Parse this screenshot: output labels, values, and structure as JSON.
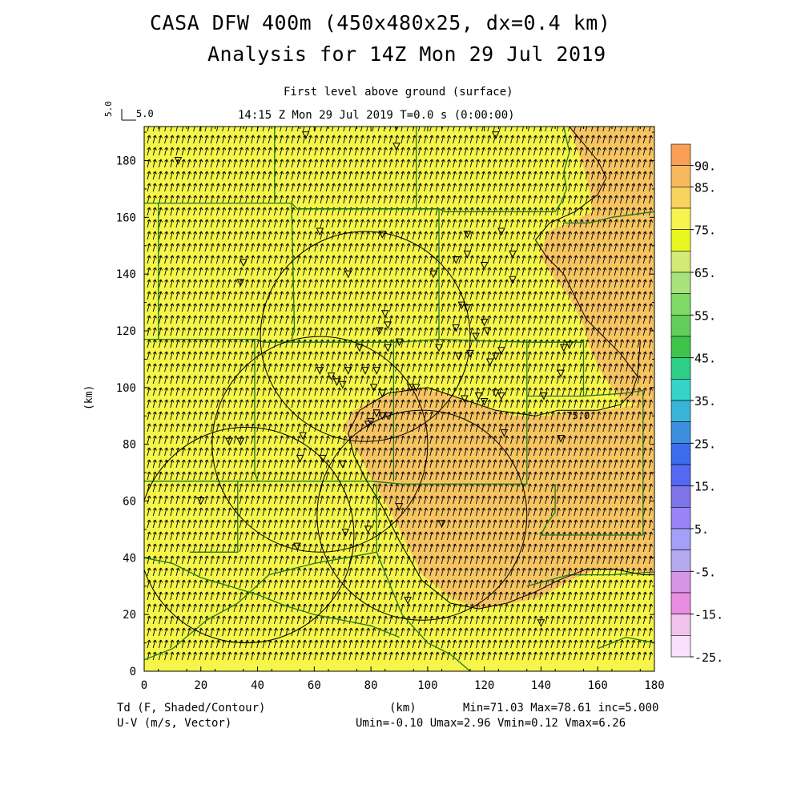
{
  "header": {
    "title": "CASA DFW 400m (450x480x25, dx=0.4 km)",
    "subtitle": "Analysis for 14Z Mon 29 Jul 2019",
    "level": "First level above ground (surface)",
    "time": "14:15 Z Mon 29 Jul 2019    T=0.0 s (0:00:00)",
    "ref_vector_label": "5.0",
    "ref_vector_value": "5.0"
  },
  "footer": {
    "variable": "Td (F, Shaded/Contour)",
    "vector": "U-V (m/s, Vector)",
    "xunit": "(km)",
    "stats": "Min=71.03 Max=78.61 inc=5.000",
    "uv_stats": "Umin=-0.10 Umax=2.96 Vmin=0.12 Vmax=6.26"
  },
  "colors": {
    "field_low": "#f5f54a",
    "field_high": "#f7c462",
    "county_lines": "#1e7a1e",
    "contour": "#000000"
  },
  "chart_data": {
    "type": "heatmap",
    "ylabel": "(km)",
    "xlabel": "(km)",
    "xlim": [
      0,
      180
    ],
    "ylim": [
      0,
      192
    ],
    "xticks": [
      "0",
      "20",
      "40",
      "60",
      "80",
      "100",
      "120",
      "140",
      "160",
      "180"
    ],
    "yticks": [
      "0",
      "20",
      "40",
      "60",
      "80",
      "100",
      "120",
      "140",
      "160",
      "180"
    ],
    "contour_labels": [
      "75.0"
    ],
    "colorbar": {
      "labels": [
        "90.",
        "85.",
        "75.",
        "65.",
        "55.",
        "45.",
        "35.",
        "25.",
        "15.",
        "5.",
        "-5.",
        "-15.",
        "-25."
      ],
      "label_values": [
        90,
        85,
        75,
        65,
        55,
        45,
        35,
        25,
        15,
        5,
        -5,
        -15,
        -25
      ],
      "colors": [
        "#f99f55",
        "#f8b85f",
        "#f8d45e",
        "#f7f44e",
        "#e9f61f",
        "#d3ea76",
        "#a7e27a",
        "#7ed965",
        "#63ce59",
        "#3ec44a",
        "#2dcf86",
        "#34d4c8",
        "#38b4d8",
        "#3b8fdd",
        "#3c6cec",
        "#5468f2",
        "#7d74e8",
        "#9983f5",
        "#a3a0f7",
        "#b5a9ef",
        "#d795e7",
        "#e88de0",
        "#f0c3ec",
        "#fbdffb"
      ]
    },
    "radars_km": [
      {
        "cx": 78,
        "cy": 118,
        "r": 37
      },
      {
        "cx": 62,
        "cy": 80,
        "r": 38
      },
      {
        "cx": 36,
        "cy": 48,
        "r": 38
      },
      {
        "cx": 98,
        "cy": 55,
        "r": 37
      }
    ]
  }
}
